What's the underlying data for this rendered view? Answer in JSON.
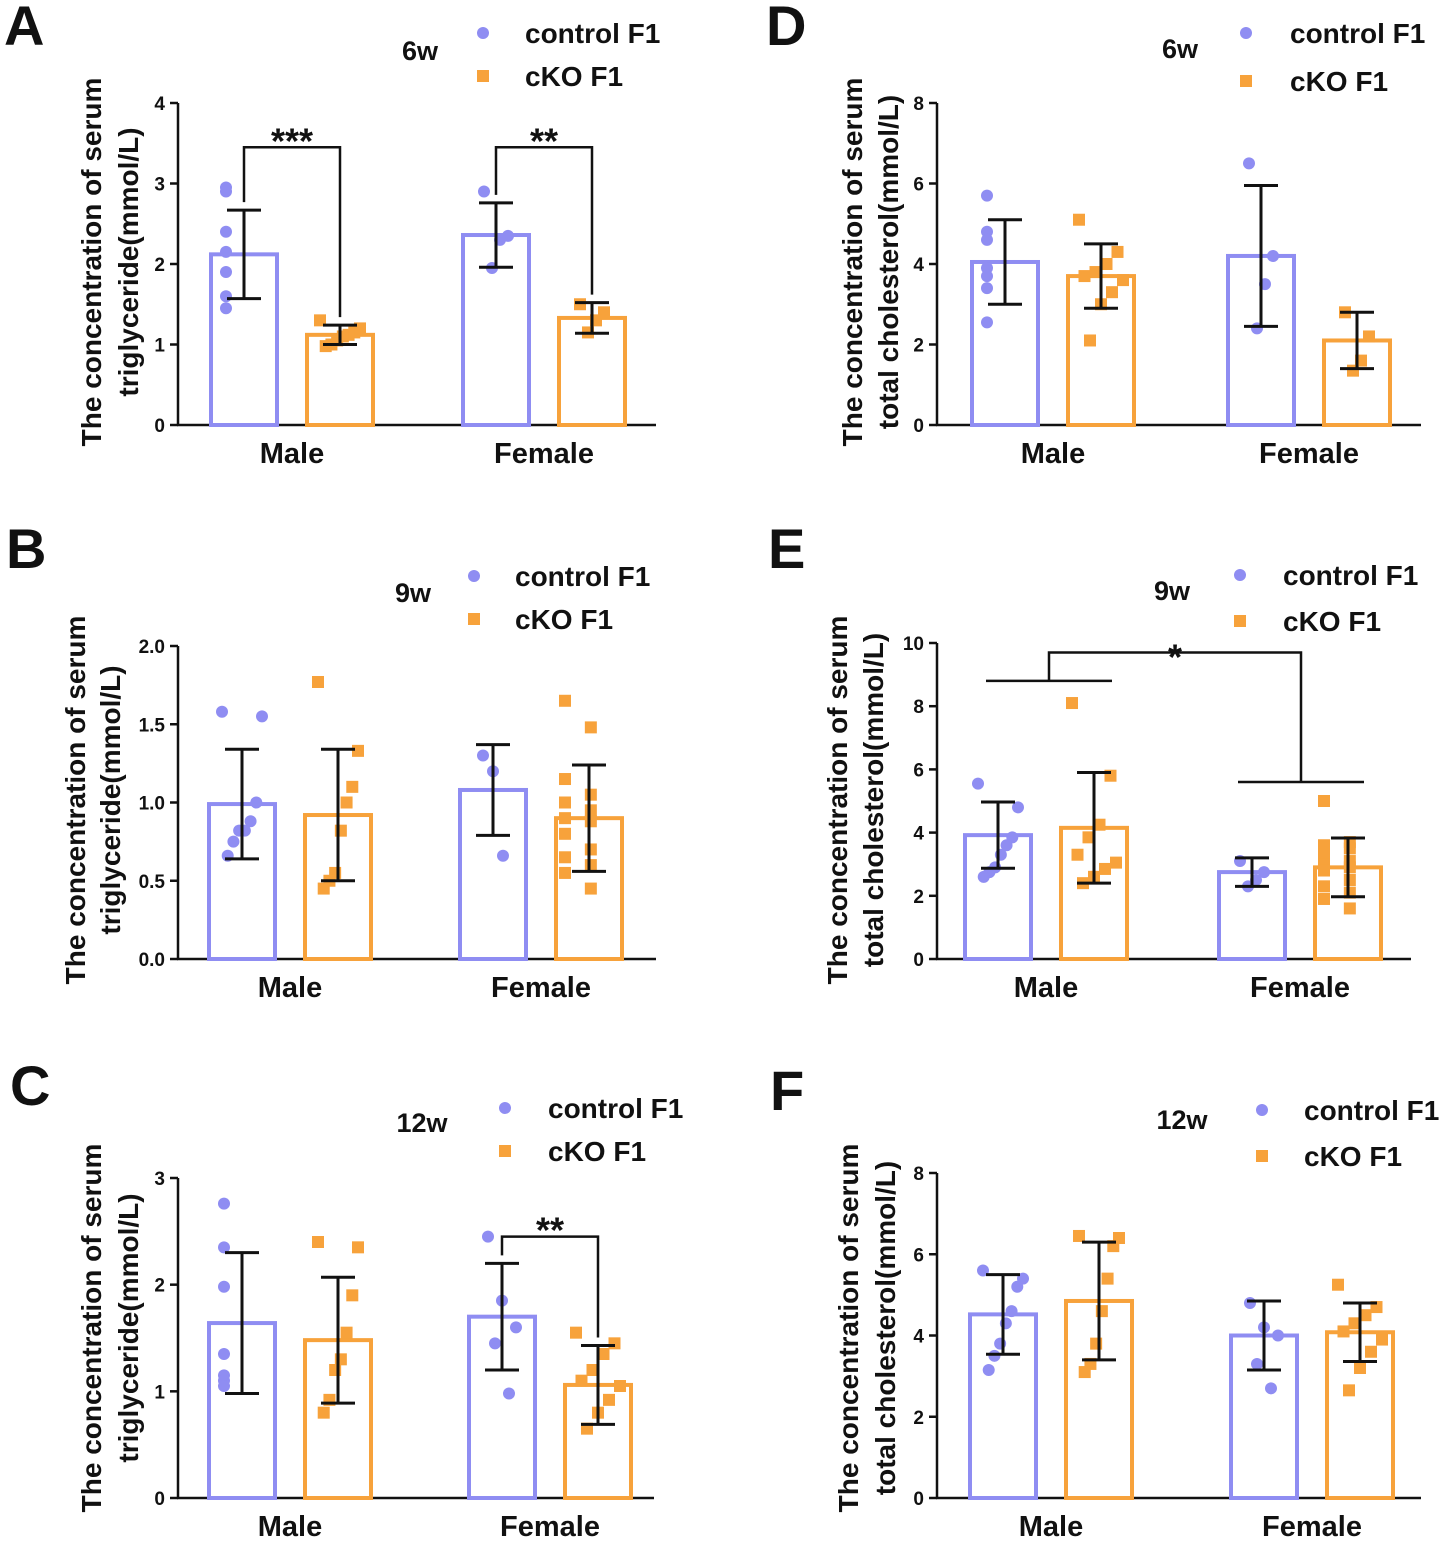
{
  "colors": {
    "control": "#8f8df2",
    "cko": "#f7a23b",
    "ink": "#111111"
  },
  "legend": {
    "control": "control F1",
    "cko": "cKO F1"
  },
  "chart_data": [
    {
      "panel": "A",
      "type": "bar",
      "timepoint": "6w",
      "ylabel": [
        "The concentration of serum",
        "triglyceride(mmol/L)"
      ],
      "categories": [
        "Male",
        "Female"
      ],
      "ylim": [
        0,
        4
      ],
      "yticks": [
        0,
        1,
        2,
        3,
        4
      ],
      "ytick_labels": [
        "0",
        "1",
        "2",
        "3",
        "4"
      ],
      "series": [
        {
          "name": "control F1",
          "means": [
            2.12,
            2.36
          ],
          "sd": [
            0.55,
            0.4
          ],
          "points": [
            [
              2.9,
              2.95,
              2.4,
              2.15,
              1.9,
              1.6,
              1.45
            ],
            [
              2.9,
              2.35,
              2.3,
              1.95
            ]
          ]
        },
        {
          "name": "cKO F1",
          "means": [
            1.12,
            1.33
          ],
          "sd": [
            0.12,
            0.19
          ],
          "points": [
            [
              1.3,
              1.2,
              1.15,
              1.12,
              1.1,
              1.05,
              1.0,
              0.98
            ],
            [
              1.5,
              1.4,
              1.3,
              1.15
            ]
          ]
        }
      ],
      "significance": [
        {
          "label": "***",
          "group": 0,
          "y": 3.45
        },
        {
          "label": "**",
          "group": 1,
          "y": 3.45
        }
      ]
    },
    {
      "panel": "B",
      "type": "bar",
      "timepoint": "9w",
      "ylabel": [
        "The concentration of serum",
        "triglyceride(mmol/L)"
      ],
      "categories": [
        "Male",
        "Female"
      ],
      "ylim": [
        0,
        2
      ],
      "yticks": [
        0,
        0.5,
        1,
        1.5,
        2
      ],
      "ytick_labels": [
        "0.0",
        "0.5",
        "1.0",
        "1.5",
        "2.0"
      ],
      "series": [
        {
          "name": "control F1",
          "means": [
            0.99,
            1.08
          ],
          "sd": [
            0.35,
            0.29
          ],
          "points": [
            [
              1.58,
              1.55,
              1.0,
              0.88,
              0.82,
              0.82,
              0.75,
              0.66
            ],
            [
              1.3,
              1.2,
              0.66
            ]
          ]
        },
        {
          "name": "cKO F1",
          "means": [
            0.92,
            0.9
          ],
          "sd": [
            0.42,
            0.34
          ],
          "points": [
            [
              1.77,
              1.33,
              1.1,
              1.0,
              0.82,
              0.55,
              0.5,
              0.45
            ],
            [
              1.65,
              1.48,
              1.15,
              1.05,
              1.0,
              0.95,
              0.9,
              0.88,
              0.8,
              0.7,
              0.65,
              0.6,
              0.55,
              0.45
            ]
          ]
        }
      ],
      "significance": []
    },
    {
      "panel": "C",
      "type": "bar",
      "timepoint": "12w",
      "ylabel": [
        "The concentration of serum",
        "triglyceride(mmol/L)"
      ],
      "categories": [
        "Male",
        "Female"
      ],
      "ylim": [
        0,
        3
      ],
      "yticks": [
        0,
        1,
        2,
        3
      ],
      "ytick_labels": [
        "0",
        "1",
        "2",
        "3"
      ],
      "series": [
        {
          "name": "control F1",
          "means": [
            1.64,
            1.7
          ],
          "sd": [
            0.66,
            0.5
          ],
          "points": [
            [
              2.76,
              2.35,
              1.98,
              1.35,
              1.15,
              1.1,
              1.05
            ],
            [
              2.45,
              1.85,
              1.6,
              1.45,
              0.98
            ]
          ]
        },
        {
          "name": "cKO F1",
          "means": [
            1.48,
            1.06
          ],
          "sd": [
            0.59,
            0.37
          ],
          "points": [
            [
              2.4,
              2.35,
              1.9,
              1.55,
              1.3,
              1.2,
              0.92,
              0.8
            ],
            [
              1.55,
              1.45,
              1.35,
              1.2,
              1.1,
              1.05,
              0.92,
              0.8,
              0.65
            ]
          ]
        }
      ],
      "significance": [
        {
          "label": "**",
          "group": 1,
          "y": 2.45
        }
      ]
    },
    {
      "panel": "D",
      "type": "bar",
      "timepoint": "6w",
      "ylabel": [
        "The concentration of serum",
        "total cholesterol(mmol/L)"
      ],
      "categories": [
        "Male",
        "Female"
      ],
      "ylim": [
        0,
        8
      ],
      "yticks": [
        0,
        2,
        4,
        6,
        8
      ],
      "ytick_labels": [
        "0",
        "2",
        "4",
        "6",
        "8"
      ],
      "series": [
        {
          "name": "control F1",
          "means": [
            4.05,
            4.2
          ],
          "sd": [
            1.05,
            1.75
          ],
          "points": [
            [
              5.7,
              4.8,
              4.6,
              3.9,
              3.7,
              3.4,
              2.55
            ],
            [
              6.5,
              4.2,
              3.5,
              2.4
            ]
          ]
        },
        {
          "name": "cKO F1",
          "means": [
            3.7,
            2.1
          ],
          "sd": [
            0.8,
            0.7
          ],
          "points": [
            [
              5.1,
              4.3,
              4.0,
              3.8,
              3.7,
              3.6,
              3.3,
              3.0,
              2.1
            ],
            [
              2.8,
              2.2,
              1.6,
              1.35
            ]
          ]
        }
      ],
      "significance": []
    },
    {
      "panel": "E",
      "type": "bar",
      "timepoint": "9w",
      "ylabel": [
        "The concentration of serum",
        "total cholesterol(mmol/L)"
      ],
      "categories": [
        "Male",
        "Female"
      ],
      "ylim": [
        0,
        10
      ],
      "yticks": [
        0,
        2,
        4,
        6,
        8,
        10
      ],
      "ytick_labels": [
        "0",
        "2",
        "4",
        "6",
        "8",
        "10"
      ],
      "series": [
        {
          "name": "control F1",
          "means": [
            3.92,
            2.75
          ],
          "sd": [
            1.05,
            0.45
          ],
          "points": [
            [
              5.55,
              4.8,
              3.85,
              3.6,
              3.3,
              2.9,
              2.75,
              2.6
            ],
            [
              3.1,
              2.75,
              2.5,
              2.3
            ]
          ]
        },
        {
          "name": "cKO F1",
          "means": [
            4.15,
            2.9
          ],
          "sd": [
            1.75,
            0.93
          ],
          "points": [
            [
              8.1,
              5.8,
              4.25,
              3.85,
              3.3,
              3.05,
              2.85,
              2.6,
              2.4
            ],
            [
              5.0,
              3.7,
              3.6,
              3.5,
              3.3,
              3.1,
              3.0,
              2.9,
              2.8,
              2.5,
              2.3,
              2.1,
              1.9,
              1.6
            ]
          ]
        }
      ],
      "significance": [
        {
          "label": "*",
          "between": "Male vs Female",
          "y": 9.5
        }
      ]
    },
    {
      "panel": "F",
      "type": "bar",
      "timepoint": "12w",
      "ylabel": [
        "The concentration of serum",
        "total cholesterol(mmol/L)"
      ],
      "categories": [
        "Male",
        "Female"
      ],
      "ylim": [
        0,
        8
      ],
      "yticks": [
        0,
        2,
        4,
        6,
        8
      ],
      "ytick_labels": [
        "0",
        "2",
        "4",
        "6",
        "8"
      ],
      "series": [
        {
          "name": "control F1",
          "means": [
            4.52,
            4.0
          ],
          "sd": [
            0.98,
            0.85
          ],
          "points": [
            [
              5.6,
              5.4,
              5.2,
              4.6,
              4.3,
              3.8,
              3.5,
              3.15
            ],
            [
              4.8,
              4.2,
              4.0,
              3.3,
              2.7
            ]
          ]
        },
        {
          "name": "cKO F1",
          "means": [
            4.85,
            4.08
          ],
          "sd": [
            1.45,
            0.72
          ],
          "points": [
            [
              6.45,
              6.4,
              6.2,
              5.4,
              4.6,
              3.8,
              3.3,
              3.1
            ],
            [
              5.25,
              4.7,
              4.5,
              4.3,
              4.1,
              3.9,
              3.6,
              3.2,
              2.65
            ]
          ]
        }
      ],
      "significance": []
    }
  ]
}
